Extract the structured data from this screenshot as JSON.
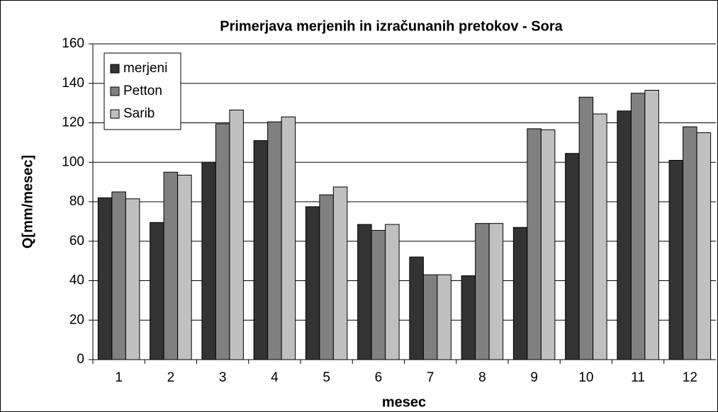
{
  "chart_data": {
    "type": "bar",
    "title": "Primerjava merjenih in izračunanih pretokov - Sora",
    "x_label": "mesec",
    "y_label": "Q[mm/mesec]",
    "categories": [
      "1",
      "2",
      "3",
      "4",
      "5",
      "6",
      "7",
      "8",
      "9",
      "10",
      "11",
      "12"
    ],
    "series": [
      {
        "name": "merjeni",
        "color": "#333333",
        "values": [
          82,
          69.5,
          100,
          111,
          77.5,
          68.5,
          52,
          42.5,
          67,
          104.5,
          126,
          101
        ]
      },
      {
        "name": "Petton",
        "color": "#808080",
        "values": [
          85,
          95,
          119.5,
          120.5,
          83.5,
          65.5,
          43,
          69,
          117,
          133,
          135,
          118
        ]
      },
      {
        "name": "Sarib",
        "color": "#c0c0c0",
        "values": [
          81.5,
          93.5,
          126.5,
          123,
          87.5,
          68.5,
          43,
          69,
          116.5,
          124.5,
          136.5,
          115
        ]
      }
    ],
    "ylim": [
      0,
      160
    ],
    "yticks": [
      0,
      20,
      40,
      60,
      80,
      100,
      120,
      140,
      160
    ],
    "grid": true,
    "legend": "upper left"
  }
}
